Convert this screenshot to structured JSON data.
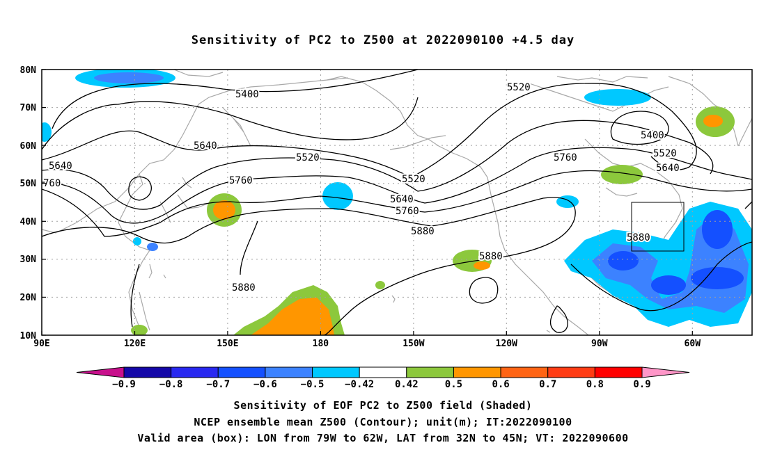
{
  "title": "Sensitivity of PC2 to Z500 at 2022090100 +4.5 day",
  "lat_labels": [
    "80N",
    "70N",
    "60N",
    "50N",
    "40N",
    "30N",
    "20N",
    "10N"
  ],
  "lon_labels": [
    "90E",
    "120E",
    "150E",
    "180",
    "150W",
    "120W",
    "90W",
    "60W"
  ],
  "contour_labels": {
    "c5400a": "5400",
    "c5520a": "5520",
    "c5400b": "5400",
    "c5520b": "5520",
    "c5640a": "5640",
    "c5640b": "5640",
    "c5760a": "5760",
    "c5640c": "5640",
    "c760": "760",
    "c5520c": "5520",
    "c5520d": "5520",
    "c5760b": "5760",
    "c5640d": "5640",
    "c5760c": "5760",
    "c5880a": "5880",
    "c5880b": "5880",
    "c5880c": "5880",
    "c5880d": "5880"
  },
  "colorbar": {
    "colors": [
      "#c8108c",
      "#1408a8",
      "#2828f0",
      "#1450ff",
      "#3c82ff",
      "#00c8ff",
      "#ffffff",
      "#8cc83c",
      "#ff9600",
      "#ff6414",
      "#ff3c14",
      "#ff0000",
      "#ff96c8"
    ],
    "labels": [
      "−0.9",
      "−0.8",
      "−0.7",
      "−0.6",
      "−0.5",
      "−0.42",
      "0.42",
      "0.5",
      "0.6",
      "0.7",
      "0.8",
      "0.9"
    ]
  },
  "caption": {
    "line1": "Sensitivity of EOF PC2 to Z500 field (Shaded)",
    "line2": "NCEP ensemble mean Z500 (Contour); unit(m); IT:2022090100",
    "line3": "Valid area (box): LON from 79W to 62W, LAT from 32N to 45N; VT: 2022090600"
  }
}
